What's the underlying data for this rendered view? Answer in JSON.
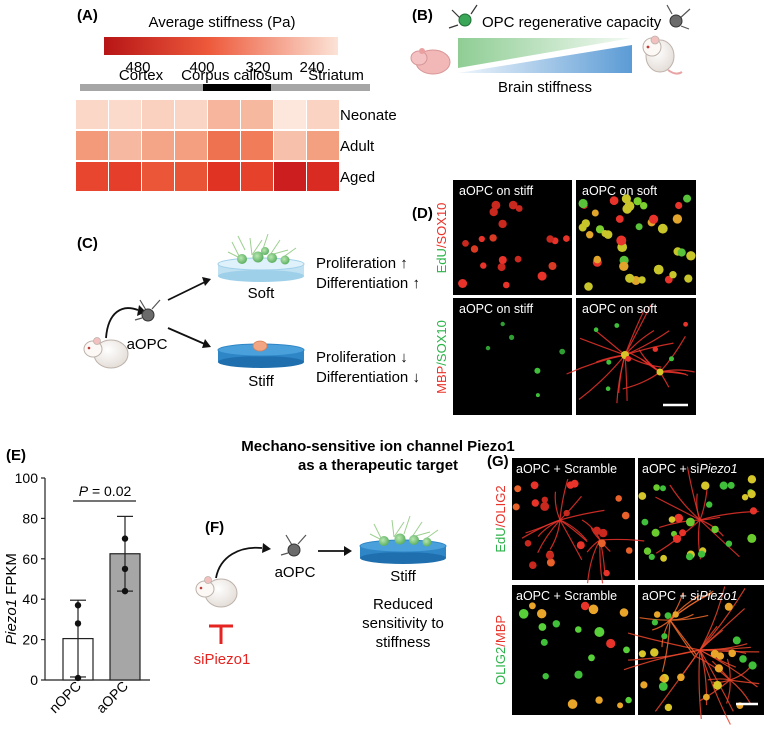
{
  "panels": {
    "a": {
      "label": "(A)",
      "title": "Average stiffness (Pa)",
      "scale_ticks": [
        "480",
        "400",
        "320",
        "240"
      ],
      "regions": [
        "Cortex",
        "Corpus callosum",
        "Striatum"
      ],
      "rows": [
        "Neonate",
        "Adult",
        "Aged"
      ],
      "heatmap": [
        [
          "#fbd7c7",
          "#fbdacb",
          "#fad0bf",
          "#fad4c4",
          "#f6b59c",
          "#f6b9a0",
          "#fde6dc",
          "#fad3c3"
        ],
        [
          "#f39a7b",
          "#f6b8a0",
          "#f4a587",
          "#f39f80",
          "#ee7250",
          "#f07c5a",
          "#f7c0aa",
          "#f3a081"
        ],
        [
          "#e8462e",
          "#e53e2a",
          "#ea5637",
          "#ea5436",
          "#e13324",
          "#e5412b",
          "#cc1e1e",
          "#da2b22"
        ]
      ],
      "colors": {
        "scale_dark": "#b71516",
        "scale_light": "#fbe3d6",
        "bar_gray": "#a6a6a6",
        "bar_black": "#000000"
      }
    },
    "b": {
      "label": "(B)",
      "top_text": "OPC regenerative capacity",
      "bottom_text": "Brain stiffness",
      "colors": {
        "green": "#8fcd94",
        "blue": "#5b9bd5"
      }
    },
    "c": {
      "label": "(C)",
      "cell_label": "aOPC",
      "soft_label": "Soft",
      "stiff_label": "Stiff",
      "soft_text": [
        "Proliferation ↑",
        "Differentiation ↑"
      ],
      "stiff_text": [
        "Proliferation ↓",
        "Differentiation ↓"
      ]
    },
    "d": {
      "label": "(D)",
      "tiles": [
        "aOPC on stiff",
        "aOPC on soft",
        "aOPC on stiff",
        "aOPC on soft"
      ],
      "row1_stain": [
        "EdU",
        "/",
        "SOX10"
      ],
      "row2_stain": [
        "MBP",
        "/",
        "SOX10"
      ]
    },
    "e": {
      "label": "(E)",
      "ylabel_italic": "Piezo1",
      "ylabel_rest": " FPKM",
      "p_label": "P",
      "p_value": " = 0.02"
    },
    "center": {
      "title_line1": "Mechano-sensitive ion channel Piezo1",
      "title_line2": "as a therapeutic target"
    },
    "f": {
      "label": "(F)",
      "cell_label": "aOPC",
      "stiff_label": "Stiff",
      "result_lines": [
        "Reduced",
        "sensitivity to",
        "stiffness"
      ],
      "inhibitor": "siPiezo1"
    },
    "g": {
      "label": "(G)",
      "tile1": "aOPC + Scramble",
      "tile2_prefix": "aOPC + si",
      "tile2_italic": "Piezo1",
      "tile3": "aOPC + Scramble",
      "tile4_prefix": "aOPC + si",
      "tile4_italic": "Piezo1",
      "row1_stain": [
        "EdU",
        "/",
        "OLIG2"
      ],
      "row2_stain": [
        "OLIG2",
        "/",
        "MBP"
      ]
    }
  },
  "chart_data": {
    "type": "bar",
    "categories": [
      "nOPC",
      "aOPC"
    ],
    "values": [
      20.5,
      62.5
    ],
    "error": [
      19,
      18.5
    ],
    "points": [
      [
        37,
        28,
        1
      ],
      [
        44,
        55,
        70
      ]
    ],
    "ylabel": "Piezo1 FPKM",
    "ylim": [
      0,
      100
    ],
    "yticks": [
      0,
      20,
      40,
      60,
      80,
      100
    ],
    "bar_colors": [
      "#ffffff",
      "#a6a6a6"
    ]
  }
}
